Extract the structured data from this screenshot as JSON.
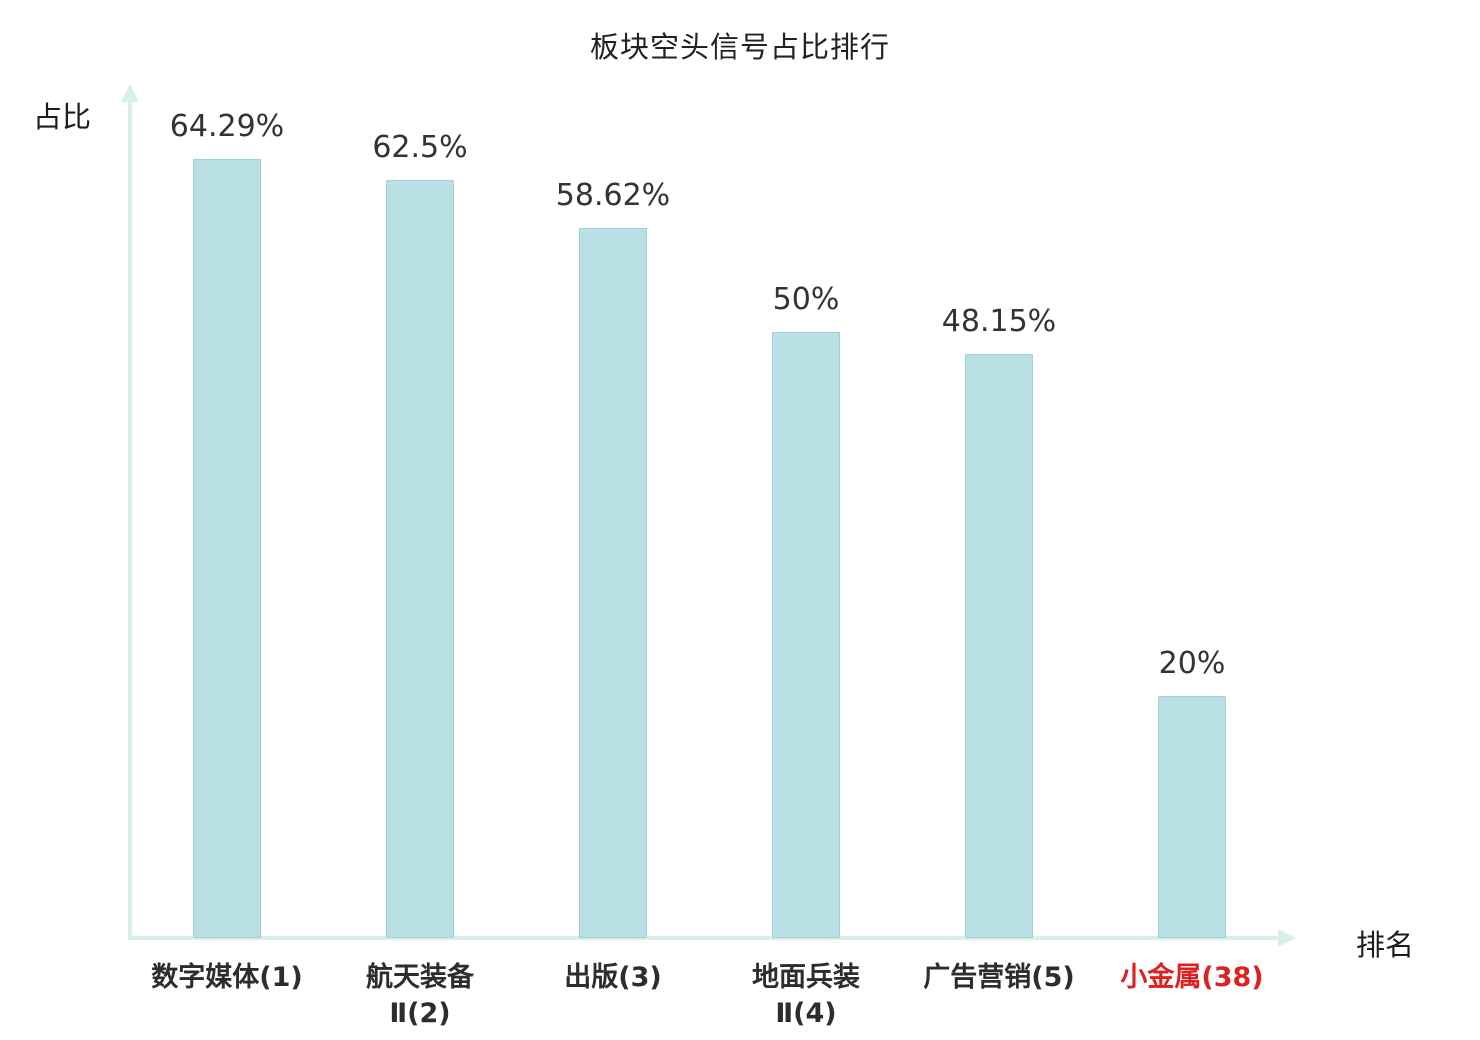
{
  "chart_data": {
    "type": "bar",
    "title": "板块空头信号占比排行",
    "xlabel": "排名",
    "ylabel": "占比",
    "categories": [
      "数字媒体(1)",
      "航天装备\nⅡ(2)",
      "出版(3)",
      "地面兵装\nⅡ(4)",
      "广告营销(5)",
      "小金属(38)"
    ],
    "values": [
      64.29,
      62.5,
      58.62,
      50,
      48.15,
      20
    ],
    "value_labels": [
      "64.29%",
      "62.5%",
      "58.62%",
      "50%",
      "48.15%",
      "20%"
    ],
    "ylim": [
      0,
      70
    ],
    "grid": false,
    "legend": "none",
    "bar_color": "#b9e0e5",
    "axis_color": "#d9efec",
    "label_color": "#2d2d2d",
    "highlight_index": 5,
    "highlight_color": "#e02020"
  }
}
